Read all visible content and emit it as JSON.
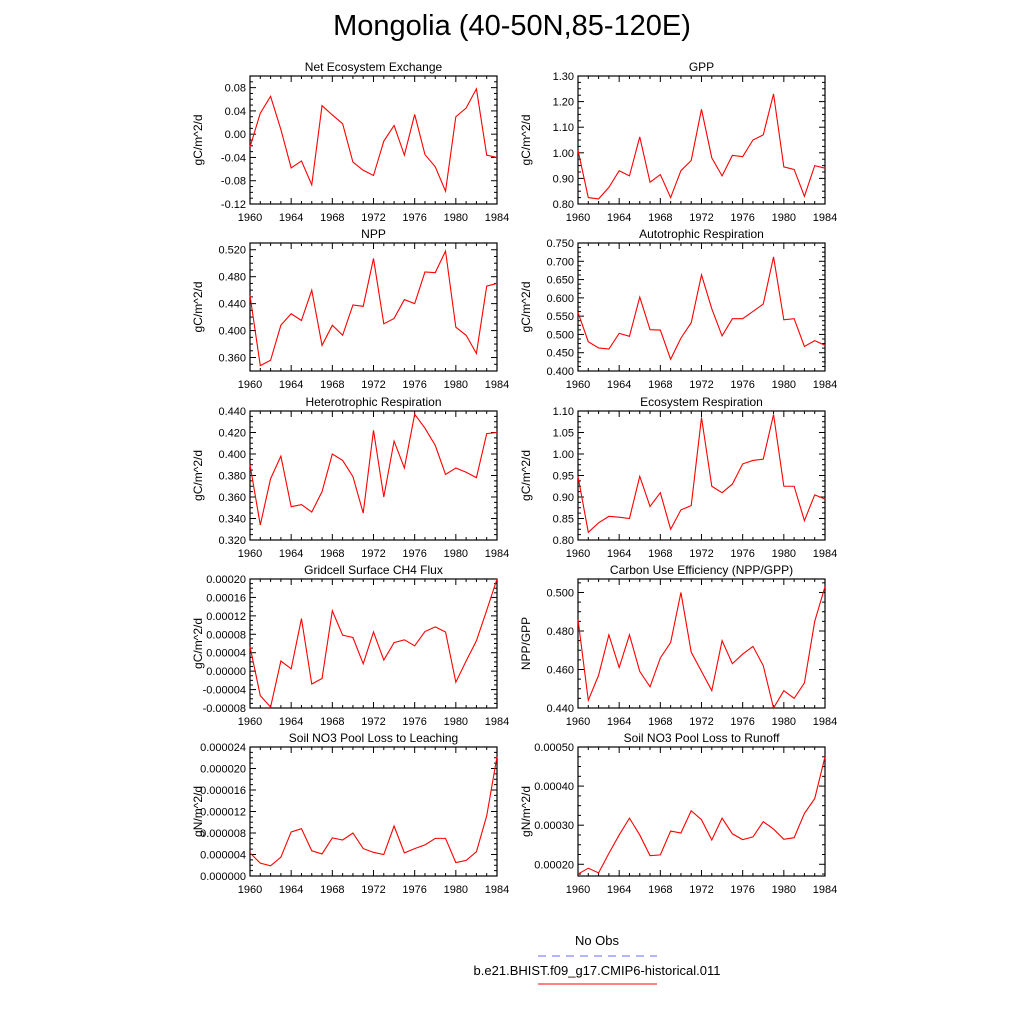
{
  "figure_title": "Mongolia (40-50N,85-120E)",
  "colors": {
    "model_line": "#ff0000",
    "obs_line": "#6a6aff",
    "axis": "#000000"
  },
  "legend": {
    "obs_label": "No Obs",
    "model_label": "b.e21.BHIST.f09_g17.CMIP6-historical.011"
  },
  "chart_data": [
    {
      "type": "line",
      "title": "Net Ecosystem Exchange",
      "xlabel": "",
      "ylabel": "gC/m^2/d",
      "xlim": [
        1960,
        1984
      ],
      "ylim": [
        -0.12,
        0.1
      ],
      "xticks": [
        1960,
        1964,
        1968,
        1972,
        1976,
        1980,
        1984
      ],
      "xtick_labels": [
        "1960",
        "1964",
        "1968",
        "1972",
        "1976",
        "1980",
        "1984"
      ],
      "yticks": [
        -0.12,
        -0.08,
        -0.04,
        0.0,
        0.04,
        0.08
      ],
      "ytick_labels": [
        "-0.12",
        "-0.08",
        "-0.04",
        "0.00",
        "0.04",
        "0.08"
      ],
      "x": [
        1960,
        1961,
        1962,
        1963,
        1964,
        1965,
        1966,
        1967,
        1968,
        1969,
        1970,
        1971,
        1972,
        1973,
        1974,
        1975,
        1976,
        1977,
        1978,
        1979,
        1980,
        1981,
        1982,
        1983,
        1984
      ],
      "series": [
        {
          "values": [
            -0.022,
            0.036,
            0.065,
            0.008,
            -0.058,
            -0.046,
            -0.087,
            0.049,
            0.033,
            0.018,
            -0.048,
            -0.062,
            -0.071,
            -0.012,
            0.015,
            -0.036,
            0.034,
            -0.035,
            -0.056,
            -0.098,
            0.03,
            0.045,
            0.078,
            -0.036,
            -0.04
          ]
        }
      ]
    },
    {
      "type": "line",
      "title": "GPP",
      "xlabel": "",
      "ylabel": "gC/m^2/d",
      "xlim": [
        1960,
        1984
      ],
      "ylim": [
        0.8,
        1.3
      ],
      "xticks": [
        1960,
        1964,
        1968,
        1972,
        1976,
        1980,
        1984
      ],
      "xtick_labels": [
        "1960",
        "1964",
        "1968",
        "1972",
        "1976",
        "1980",
        "1984"
      ],
      "yticks": [
        0.8,
        0.9,
        1.0,
        1.1,
        1.2,
        1.3
      ],
      "ytick_labels": [
        "0.80",
        "0.90",
        "1.00",
        "1.10",
        "1.20",
        "1.30"
      ],
      "x": [
        1960,
        1961,
        1962,
        1963,
        1964,
        1965,
        1966,
        1967,
        1968,
        1969,
        1970,
        1971,
        1972,
        1973,
        1974,
        1975,
        1976,
        1977,
        1978,
        1979,
        1980,
        1981,
        1982,
        1983,
        1984
      ],
      "series": [
        {
          "values": [
            1.01,
            0.825,
            0.82,
            0.865,
            0.93,
            0.91,
            1.062,
            0.885,
            0.915,
            0.825,
            0.93,
            0.97,
            1.17,
            0.98,
            0.91,
            0.99,
            0.985,
            1.05,
            1.07,
            1.23,
            0.945,
            0.935,
            0.83,
            0.95,
            0.94
          ]
        }
      ]
    },
    {
      "type": "line",
      "title": "NPP",
      "xlabel": "",
      "ylabel": "gC/m^2/d",
      "xlim": [
        1960,
        1984
      ],
      "ylim": [
        0.34,
        0.53
      ],
      "xticks": [
        1960,
        1964,
        1968,
        1972,
        1976,
        1980,
        1984
      ],
      "xtick_labels": [
        "1960",
        "1964",
        "1968",
        "1972",
        "1976",
        "1980",
        "1984"
      ],
      "yticks": [
        0.36,
        0.4,
        0.44,
        0.48,
        0.52
      ],
      "ytick_labels": [
        "0.360",
        "0.400",
        "0.440",
        "0.480",
        "0.520"
      ],
      "x": [
        1960,
        1961,
        1962,
        1963,
        1964,
        1965,
        1966,
        1967,
        1968,
        1969,
        1970,
        1971,
        1972,
        1973,
        1974,
        1975,
        1976,
        1977,
        1978,
        1979,
        1980,
        1981,
        1982,
        1983,
        1984
      ],
      "series": [
        {
          "values": [
            0.452,
            0.348,
            0.356,
            0.408,
            0.425,
            0.415,
            0.46,
            0.378,
            0.408,
            0.393,
            0.438,
            0.436,
            0.507,
            0.41,
            0.418,
            0.446,
            0.44,
            0.487,
            0.486,
            0.518,
            0.405,
            0.393,
            0.366,
            0.466,
            0.47
          ]
        }
      ]
    },
    {
      "type": "line",
      "title": "Autotrophic Respiration",
      "xlabel": "",
      "ylabel": "gC/m^2/d",
      "xlim": [
        1960,
        1984
      ],
      "ylim": [
        0.4,
        0.75
      ],
      "xticks": [
        1960,
        1964,
        1968,
        1972,
        1976,
        1980,
        1984
      ],
      "xtick_labels": [
        "1960",
        "1964",
        "1968",
        "1972",
        "1976",
        "1980",
        "1984"
      ],
      "yticks": [
        0.4,
        0.45,
        0.5,
        0.55,
        0.6,
        0.65,
        0.7,
        0.75
      ],
      "ytick_labels": [
        "0.400",
        "0.450",
        "0.500",
        "0.550",
        "0.600",
        "0.650",
        "0.700",
        "0.750"
      ],
      "x": [
        1960,
        1961,
        1962,
        1963,
        1964,
        1965,
        1966,
        1967,
        1968,
        1969,
        1970,
        1971,
        1972,
        1973,
        1974,
        1975,
        1976,
        1977,
        1978,
        1979,
        1980,
        1981,
        1982,
        1983,
        1984
      ],
      "series": [
        {
          "values": [
            0.56,
            0.48,
            0.463,
            0.46,
            0.503,
            0.495,
            0.602,
            0.513,
            0.512,
            0.432,
            0.49,
            0.532,
            0.663,
            0.57,
            0.496,
            0.543,
            0.543,
            0.563,
            0.583,
            0.712,
            0.54,
            0.543,
            0.467,
            0.483,
            0.47
          ]
        }
      ]
    },
    {
      "type": "line",
      "title": "Heterotrophic Respiration",
      "xlabel": "",
      "ylabel": "gC/m^2/d",
      "xlim": [
        1960,
        1984
      ],
      "ylim": [
        0.32,
        0.44
      ],
      "xticks": [
        1960,
        1964,
        1968,
        1972,
        1976,
        1980,
        1984
      ],
      "xtick_labels": [
        "1960",
        "1964",
        "1968",
        "1972",
        "1976",
        "1980",
        "1984"
      ],
      "yticks": [
        0.32,
        0.34,
        0.36,
        0.38,
        0.4,
        0.42,
        0.44
      ],
      "ytick_labels": [
        "0.320",
        "0.340",
        "0.360",
        "0.380",
        "0.400",
        "0.420",
        "0.440"
      ],
      "x": [
        1960,
        1961,
        1962,
        1963,
        1964,
        1965,
        1966,
        1967,
        1968,
        1969,
        1970,
        1971,
        1972,
        1973,
        1974,
        1975,
        1976,
        1977,
        1978,
        1979,
        1980,
        1981,
        1982,
        1983,
        1984
      ],
      "series": [
        {
          "values": [
            0.39,
            0.334,
            0.377,
            0.398,
            0.351,
            0.353,
            0.346,
            0.365,
            0.4,
            0.394,
            0.379,
            0.345,
            0.422,
            0.36,
            0.412,
            0.387,
            0.437,
            0.424,
            0.408,
            0.381,
            0.387,
            0.383,
            0.378,
            0.419,
            0.42
          ]
        }
      ]
    },
    {
      "type": "line",
      "title": "Ecosystem Respiration",
      "xlabel": "",
      "ylabel": "gC/m^2/d",
      "xlim": [
        1960,
        1984
      ],
      "ylim": [
        0.8,
        1.1
      ],
      "xticks": [
        1960,
        1964,
        1968,
        1972,
        1976,
        1980,
        1984
      ],
      "xtick_labels": [
        "1960",
        "1964",
        "1968",
        "1972",
        "1976",
        "1980",
        "1984"
      ],
      "yticks": [
        0.8,
        0.85,
        0.9,
        0.95,
        1.0,
        1.05,
        1.1
      ],
      "ytick_labels": [
        "0.80",
        "0.85",
        "0.90",
        "0.95",
        "1.00",
        "1.05",
        "1.10"
      ],
      "x": [
        1960,
        1961,
        1962,
        1963,
        1964,
        1965,
        1966,
        1967,
        1968,
        1969,
        1970,
        1971,
        1972,
        1973,
        1974,
        1975,
        1976,
        1977,
        1978,
        1979,
        1980,
        1981,
        1982,
        1983,
        1984
      ],
      "series": [
        {
          "values": [
            0.948,
            0.818,
            0.84,
            0.855,
            0.853,
            0.85,
            0.948,
            0.878,
            0.91,
            0.825,
            0.87,
            0.88,
            1.085,
            0.925,
            0.91,
            0.93,
            0.977,
            0.985,
            0.988,
            1.092,
            0.925,
            0.925,
            0.845,
            0.905,
            0.895
          ]
        }
      ]
    },
    {
      "type": "line",
      "title": "Gridcell Surface CH4 Flux",
      "xlabel": "",
      "ylabel": "gC/m^2/d",
      "xlim": [
        1960,
        1984
      ],
      "ylim": [
        -8e-05,
        0.0002
      ],
      "xticks": [
        1960,
        1964,
        1968,
        1972,
        1976,
        1980,
        1984
      ],
      "xtick_labels": [
        "1960",
        "1964",
        "1968",
        "1972",
        "1976",
        "1980",
        "1984"
      ],
      "yticks": [
        -8e-05,
        -4e-05,
        0.0,
        4e-05,
        8e-05,
        0.00012,
        0.00016,
        0.0002
      ],
      "ytick_labels": [
        "-0.00008",
        "-0.00004",
        "0.00000",
        "0.00004",
        "0.00008",
        "0.00012",
        "0.00016",
        "0.00020"
      ],
      "x": [
        1960,
        1961,
        1962,
        1963,
        1964,
        1965,
        1966,
        1967,
        1968,
        1969,
        1970,
        1971,
        1972,
        1973,
        1974,
        1975,
        1976,
        1977,
        1978,
        1979,
        1980,
        1981,
        1982,
        1983,
        1984
      ],
      "series": [
        {
          "values": [
            5.3e-05,
            -5.3e-05,
            -7.8e-05,
            2.2e-05,
            5e-06,
            0.000114,
            -2.8e-05,
            -1.6e-05,
            0.000131,
            7.8e-05,
            7.3e-05,
            1.6e-05,
            8.5e-05,
            2.4e-05,
            6.2e-05,
            6.8e-05,
            5.5e-05,
            8.6e-05,
            9.6e-05,
            8.5e-05,
            -2.4e-05,
            2.2e-05,
            6.6e-05,
            0.000132,
            0.0002
          ]
        }
      ]
    },
    {
      "type": "line",
      "title": "Carbon Use Efficiency (NPP/GPP)",
      "xlabel": "",
      "ylabel": "NPP/GPP",
      "xlim": [
        1960,
        1984
      ],
      "ylim": [
        0.44,
        0.507
      ],
      "xticks": [
        1960,
        1964,
        1968,
        1972,
        1976,
        1980,
        1984
      ],
      "xtick_labels": [
        "1960",
        "1964",
        "1968",
        "1972",
        "1976",
        "1980",
        "1984"
      ],
      "yticks": [
        0.44,
        0.46,
        0.48,
        0.5
      ],
      "ytick_labels": [
        "0.440",
        "0.460",
        "0.480",
        "0.500"
      ],
      "x": [
        1960,
        1961,
        1962,
        1963,
        1964,
        1965,
        1966,
        1967,
        1968,
        1969,
        1970,
        1971,
        1972,
        1973,
        1974,
        1975,
        1976,
        1977,
        1978,
        1979,
        1980,
        1981,
        1982,
        1983,
        1984
      ],
      "series": [
        {
          "values": [
            0.486,
            0.444,
            0.457,
            0.478,
            0.461,
            0.478,
            0.459,
            0.451,
            0.466,
            0.474,
            0.5,
            0.469,
            0.459,
            0.449,
            0.475,
            0.463,
            0.468,
            0.472,
            0.462,
            0.44,
            0.449,
            0.445,
            0.453,
            0.485,
            0.503
          ]
        }
      ]
    },
    {
      "type": "line",
      "title": "Soil NO3 Pool Loss to Leaching",
      "xlabel": "",
      "ylabel": "gN/m^2/d",
      "xlim": [
        1960,
        1984
      ],
      "ylim": [
        0.0,
        2.4e-05
      ],
      "xticks": [
        1960,
        1964,
        1968,
        1972,
        1976,
        1980,
        1984
      ],
      "xtick_labels": [
        "1960",
        "1964",
        "1968",
        "1972",
        "1976",
        "1980",
        "1984"
      ],
      "yticks": [
        0.0,
        4e-06,
        8e-06,
        1.2e-05,
        1.6e-05,
        2e-05,
        2.4e-05
      ],
      "ytick_labels": [
        "0.000000",
        "0.000004",
        "0.000008",
        "0.000012",
        "0.000016",
        "0.000020",
        "0.000024"
      ],
      "x": [
        1960,
        1961,
        1962,
        1963,
        1964,
        1965,
        1966,
        1967,
        1968,
        1969,
        1970,
        1971,
        1972,
        1973,
        1974,
        1975,
        1976,
        1977,
        1978,
        1979,
        1980,
        1981,
        1982,
        1983,
        1984
      ],
      "series": [
        {
          "values": [
            4.3e-06,
            2.4e-06,
            1.9e-06,
            3.5e-06,
            8.2e-06,
            8.8e-06,
            4.7e-06,
            4.1e-06,
            7.1e-06,
            6.7e-06,
            8e-06,
            5.1e-06,
            4.4e-06,
            4e-06,
            9.3e-06,
            4.3e-06,
            5.1e-06,
            5.8e-06,
            7e-06,
            7e-06,
            2.5e-06,
            2.9e-06,
            4.5e-06,
            1.12e-05,
            2.22e-05
          ]
        }
      ]
    },
    {
      "type": "line",
      "title": "Soil NO3 Pool Loss to Runoff",
      "xlabel": "",
      "ylabel": "gN/m^2/d",
      "xlim": [
        1960,
        1984
      ],
      "ylim": [
        0.00017,
        0.0005
      ],
      "xticks": [
        1960,
        1964,
        1968,
        1972,
        1976,
        1980,
        1984
      ],
      "xtick_labels": [
        "1960",
        "1964",
        "1968",
        "1972",
        "1976",
        "1980",
        "1984"
      ],
      "yticks": [
        0.0002,
        0.0003,
        0.0004,
        0.0005
      ],
      "ytick_labels": [
        "0.00020",
        "0.00030",
        "0.00040",
        "0.00050"
      ],
      "x": [
        1960,
        1961,
        1962,
        1963,
        1964,
        1965,
        1966,
        1967,
        1968,
        1969,
        1970,
        1971,
        1972,
        1973,
        1974,
        1975,
        1976,
        1977,
        1978,
        1979,
        1980,
        1981,
        1982,
        1983,
        1984
      ],
      "series": [
        {
          "values": [
            0.000175,
            0.00019,
            0.000178,
            0.000228,
            0.000275,
            0.000318,
            0.000275,
            0.000222,
            0.000224,
            0.000285,
            0.00028,
            0.000337,
            0.000314,
            0.000262,
            0.000318,
            0.000278,
            0.000263,
            0.00027,
            0.000309,
            0.00029,
            0.000264,
            0.000268,
            0.00033,
            0.000368,
            0.000475
          ]
        }
      ]
    }
  ]
}
